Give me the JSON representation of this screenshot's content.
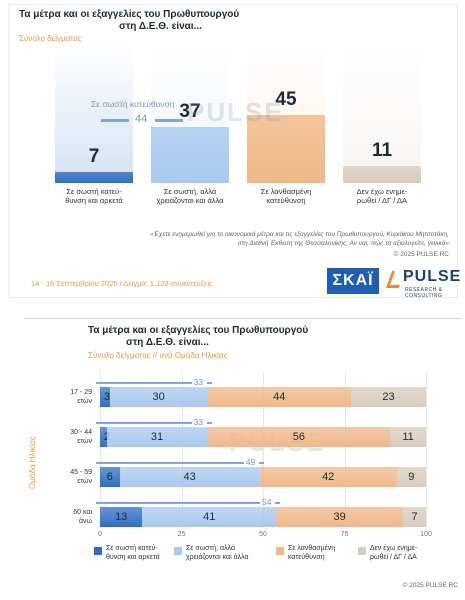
{
  "top": {
    "title_line1": "Τα μέτρα και οι εξαγγελίες του Πρωθυπουργού",
    "title_line2": "στη Δ.Ε.Θ. είναι...",
    "subtitle": "Σύνολο δείγματος",
    "reference": {
      "label": "Σε σωστή κατεύθυνση",
      "value": "44"
    },
    "watermark": "PULSE",
    "note_line1": "«Έχετε ενημερωθεί για τα οικονομικά μέτρα και τις εξαγγελίες του Πρωθυπουργού, Κυριάκου Μητσοτάκη,",
    "note_line2": "στη Διεθνή Έκθεση της Θεσσαλονίκης; Αν ναι, πώς τα αξιολογείτε, γενικά»",
    "copyright": "© 2025 PULSE RC",
    "date_line": "14 - 16 Σεπτεμβρίου 2025 / Δείγμα: 1.129 συνεντεύξεις",
    "logo_skai": "ΣΚΑΪ",
    "logo_pulse": "PULSE",
    "logo_pulse_sub": "RESEARCH & CONSULTING"
  },
  "bottom": {
    "title_line1": "Τα μέτρα και οι εξαγγελίες του Πρωθυπουργού",
    "title_line2": "στη Δ.Ε.Θ. είναι...",
    "subtitle": "Σύνολο δείγματος // ανά Ομάδα Ηλικίας",
    "y_axis_title": "Ομάδα Ηλικίας",
    "watermark": "PULSE",
    "copyright": "© 2025 PULSE RC"
  },
  "chart_data": [
    {
      "type": "bar",
      "title": "Τα μέτρα και οι εξαγγελίες του Πρωθυπουργού στη Δ.Ε.Θ. είναι...",
      "subtitle": "Σύνολο δείγματος",
      "categories": [
        [
          "Σε σωστή κατεύ-",
          "θυνση και αρκετά"
        ],
        [
          "Σε σωστή, αλλά",
          "χρειάζονται και άλλα"
        ],
        [
          "Σε λανθασμένη",
          "κατεύθυνση"
        ],
        [
          "Δεν έχω ενημε-",
          "ρωθεί / ΔΓ / ΔΑ"
        ]
      ],
      "values": [
        7,
        37,
        45,
        11
      ],
      "ylim": [
        0,
        100
      ],
      "colors": [
        "#2e6fc4",
        "#a9c9ef",
        "#f0b887",
        "#d8ccbe"
      ],
      "annotation": {
        "label": "Σε σωστή κατεύθυνση",
        "value": 44
      }
    },
    {
      "type": "bar",
      "orientation": "horizontal-stacked",
      "title": "Τα μέτρα και οι εξαγγελίες του Πρωθυπουργού στη Δ.Ε.Θ. είναι...",
      "subtitle": "Σύνολο δείγματος // ανά Ομάδα Ηλικίας",
      "ylabel": "Ομάδα Ηλικίας",
      "categories": [
        [
          "17 - 29",
          "ετών"
        ],
        [
          "30 - 44",
          "ετών"
        ],
        [
          "45 - 59",
          "ετών"
        ],
        [
          "60 και",
          "άνω"
        ]
      ],
      "series": [
        {
          "name": "Σε σωστή κατεύθυνση και αρκετά",
          "legend": [
            "Σε σωστή κατεύ-",
            "θυνση και αρκετά"
          ],
          "color": "#2e6fc4",
          "values": [
            3,
            2,
            6,
            13
          ]
        },
        {
          "name": "Σε σωστή, αλλά χρειάζονται και άλλα",
          "legend": [
            "Σε σωστή, αλλά",
            "χρειάζονται και άλλα"
          ],
          "color": "#a9c9ef",
          "values": [
            30,
            31,
            43,
            41
          ]
        },
        {
          "name": "Σε λανθασμένη κατεύθυνση",
          "legend": [
            "Σε λανθασμένη",
            "κατεύθυνση"
          ],
          "color": "#f0b887",
          "values": [
            44,
            56,
            42,
            39
          ]
        },
        {
          "name": "Δεν έχω ενημερωθεί / ΔΓ / ΔΑ",
          "legend": [
            "Δεν έχω ενημε-",
            "ρωθεί / ΔΓ / ΔΑ"
          ],
          "color": "#d8ccbe",
          "values": [
            23,
            11,
            9,
            7
          ]
        }
      ],
      "reference_totals": [
        33,
        33,
        49,
        54
      ],
      "xlim": [
        0,
        100
      ],
      "xticks": [
        0,
        25,
        50,
        75,
        100
      ],
      "grid": true,
      "legend_position": "bottom"
    }
  ]
}
